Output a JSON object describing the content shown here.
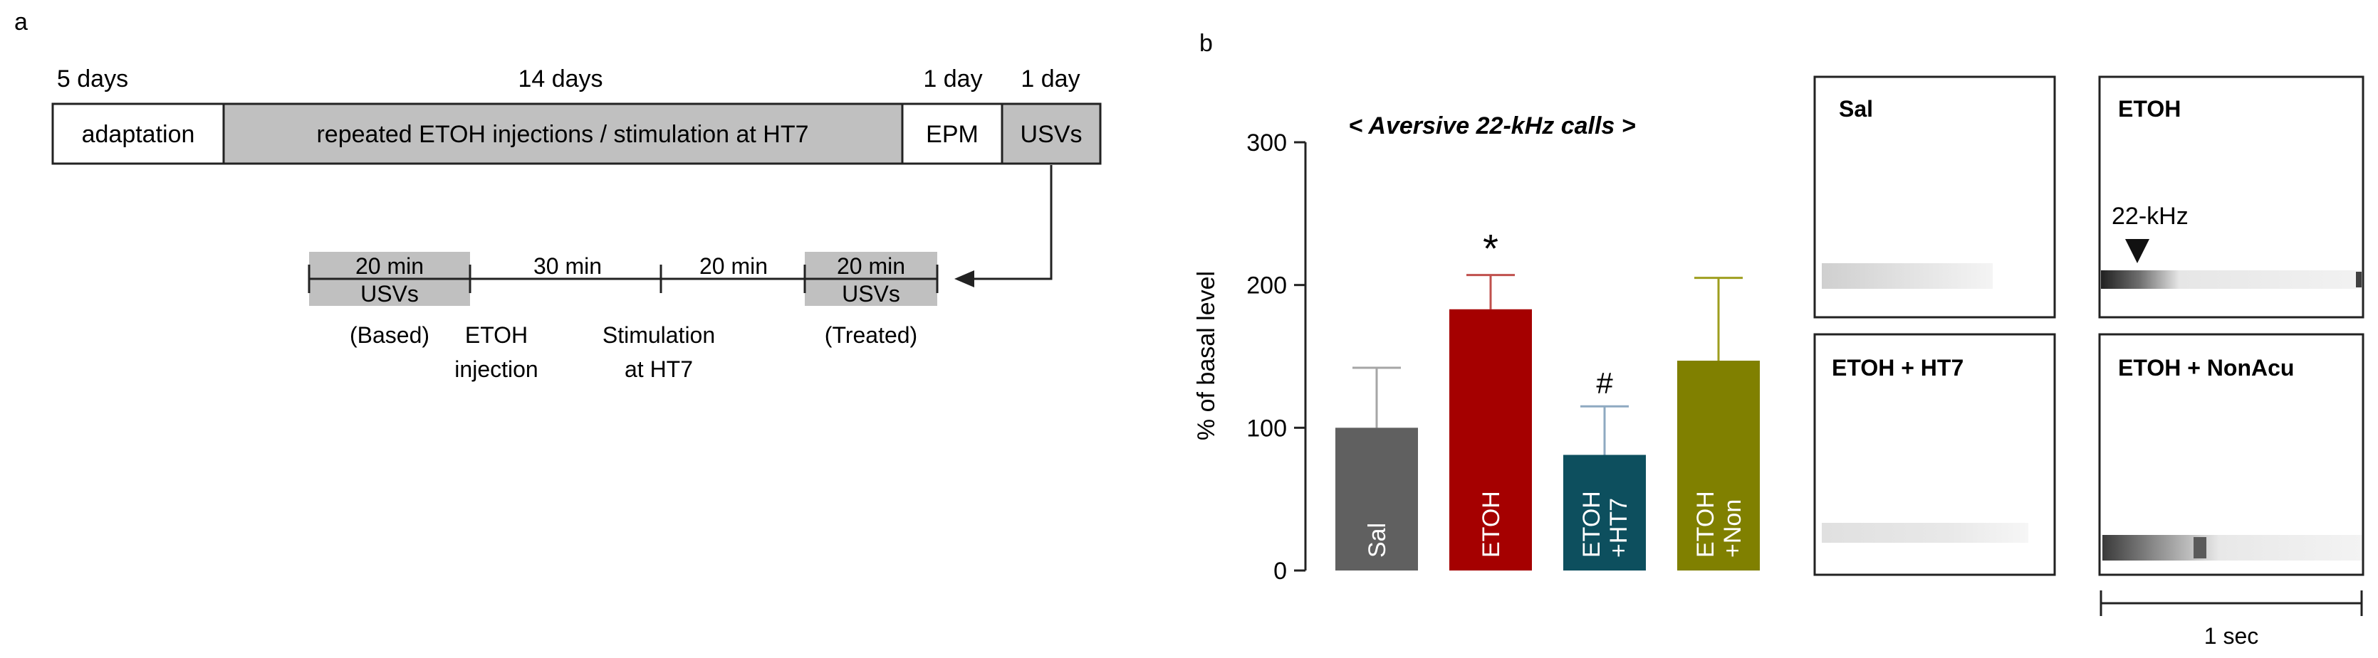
{
  "panel_a": {
    "label": "a",
    "durations": [
      "5 days",
      "14 days",
      "1 day",
      "1 day"
    ],
    "phases": [
      {
        "name": "adaptation",
        "fill": "#ffffff"
      },
      {
        "name": "repeated ETOH injections / stimulation at HT7",
        "fill": "#c0c0c0"
      },
      {
        "name": "EPM",
        "fill": "#ffffff"
      },
      {
        "name": "USVs",
        "fill": "#c0c0c0"
      }
    ],
    "timeline": {
      "block1": [
        "20 min",
        "USVs"
      ],
      "block1_note": "(Based)",
      "gap1": "30 min",
      "event1": [
        "ETOH",
        "injection"
      ],
      "gap2": "20 min",
      "event2": [
        "Stimulation",
        "at HT7"
      ],
      "block2": [
        "20 min",
        "USVs"
      ],
      "block2_note": "(Treated)"
    }
  },
  "panel_b": {
    "label": "b",
    "spectrograms": [
      {
        "title": "Sal",
        "annotation": ""
      },
      {
        "title": "ETOH",
        "annotation": "22-kHz"
      },
      {
        "title": "ETOH + HT7",
        "annotation": ""
      },
      {
        "title": "ETOH + NonAcu",
        "annotation": ""
      }
    ],
    "scale_label": "1 sec"
  },
  "chart_data": {
    "type": "bar",
    "title": "< Aversive 22-kHz calls >",
    "ylabel": "% of basal level",
    "xlabel": "",
    "ylim": [
      0,
      300
    ],
    "yticks": [
      0,
      100,
      200,
      300
    ],
    "categories": [
      "Sal",
      "ETOH",
      "ETOH +HT7",
      "ETOH +Non"
    ],
    "category_lines": [
      [
        "Sal"
      ],
      [
        "ETOH"
      ],
      [
        "ETOH",
        "+HT7"
      ],
      [
        "ETOH",
        "+Non"
      ]
    ],
    "values": [
      100,
      183,
      81,
      147
    ],
    "errors": [
      42,
      24,
      34,
      58
    ],
    "colors": [
      "#606060",
      "#a50000",
      "#0d4f5e",
      "#808000"
    ],
    "error_colors": [
      "#a6a6a6",
      "#c0504d",
      "#8ea9c1",
      "#9e9e1f"
    ],
    "significance": [
      "",
      "*",
      "#",
      ""
    ]
  }
}
